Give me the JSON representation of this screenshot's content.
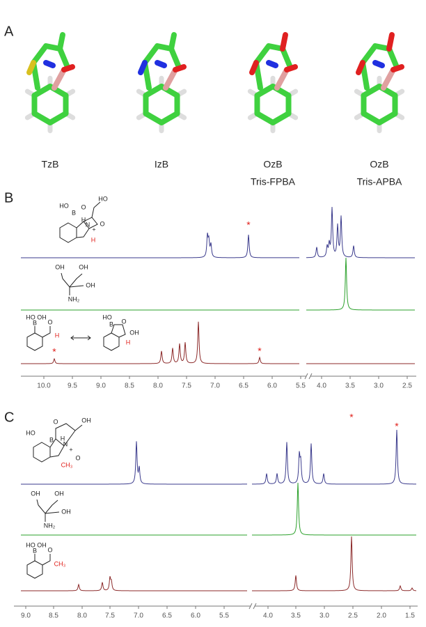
{
  "panels": {
    "a": {
      "label": "A",
      "molecules": [
        {
          "name": "TzB"
        },
        {
          "name": "IzB"
        },
        {
          "name": "OzB",
          "subtitle": "Tris-FPBA"
        },
        {
          "name": "OzB",
          "subtitle": "Tris-APBA"
        }
      ]
    },
    "b": {
      "label": "B",
      "product_atoms": [
        "HO",
        "B",
        "O",
        "N",
        "H",
        "+",
        "HO",
        "O",
        "H"
      ],
      "tris_atoms": [
        "OH",
        "OH",
        "OH",
        "NH₂"
      ],
      "aldehyde_atoms": [
        "HO",
        "B",
        "OH",
        "O",
        "H"
      ],
      "cyclic_atoms": [
        "HO",
        "B",
        "O",
        "OH",
        "H"
      ],
      "asterisks": [
        "*",
        "*",
        "*"
      ],
      "ticks": [
        "10.0",
        "9.5",
        "9.0",
        "8.5",
        "8.0",
        "7.5",
        "7.0",
        "6.5",
        "6.0",
        "5.5",
        "4.0",
        "3.5",
        "3.0",
        "2.5"
      ]
    },
    "c": {
      "label": "C",
      "product_atoms": [
        "HO",
        "B",
        "O",
        "N",
        "H",
        "+",
        "OH",
        "O",
        "CH₃"
      ],
      "tris_atoms": [
        "OH",
        "OH",
        "OH",
        "NH₂"
      ],
      "ketone_atoms": [
        "HO",
        "B",
        "OH",
        "O",
        "CH₃"
      ],
      "asterisks": [
        "*",
        "*"
      ],
      "ticks": [
        "9.0",
        "8.5",
        "8.0",
        "7.5",
        "7.0",
        "6.5",
        "6.0",
        "5.5",
        "4.0",
        "3.5",
        "3.0",
        "2.5",
        "2.0",
        "1.5"
      ]
    }
  }
}
